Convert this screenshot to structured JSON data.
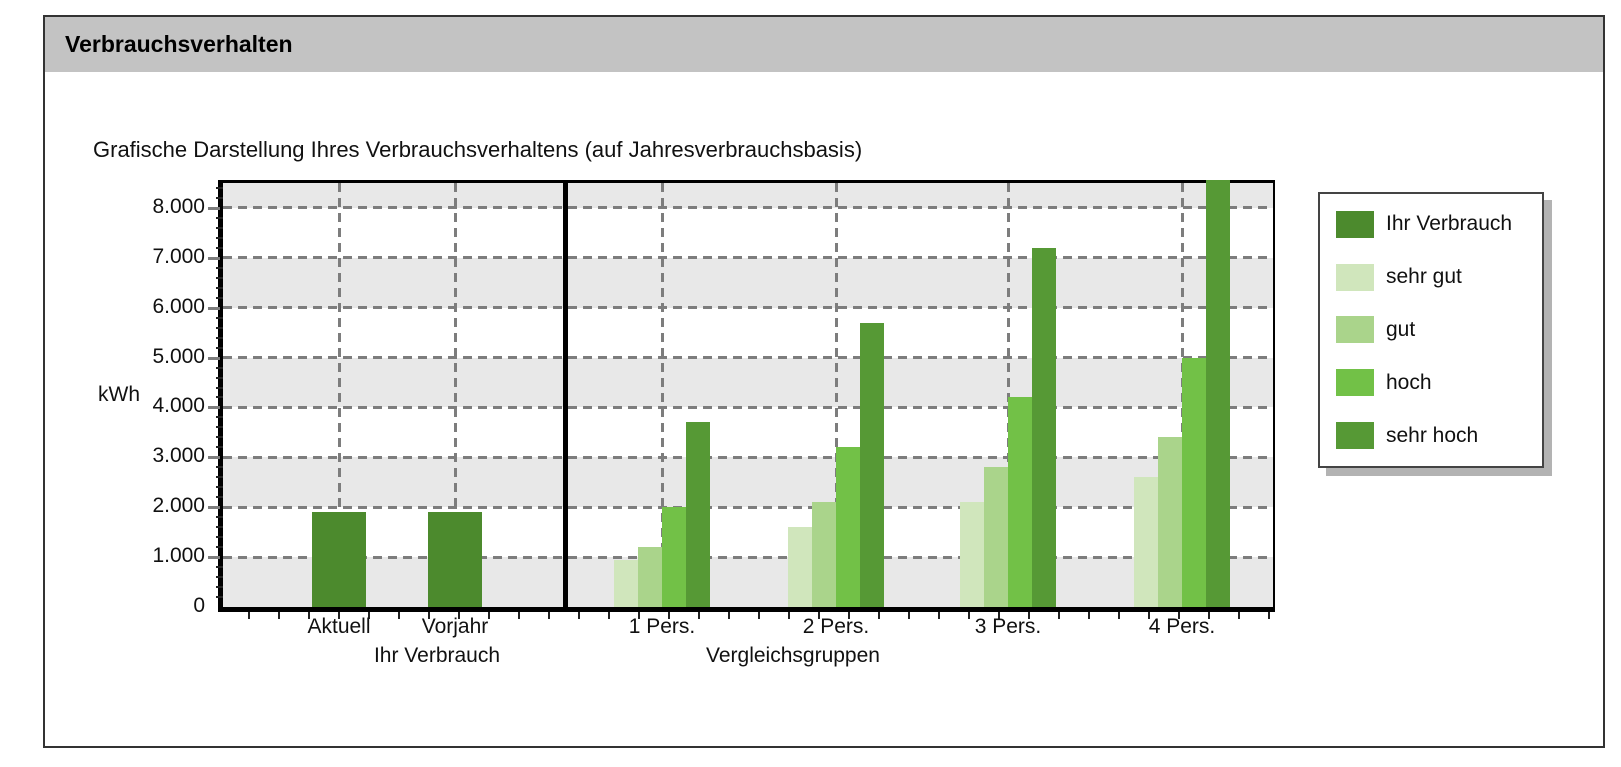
{
  "window": {
    "title": "Verbrauchsverhalten"
  },
  "chart_data": {
    "type": "bar",
    "title": "Grafische Darstellung Ihres Verbrauchsverhaltens (auf Jahresverbrauchsbasis)",
    "ylabel": "kWh",
    "ylim": [
      0,
      8500
    ],
    "ytick_interval": 1000,
    "ytick_labels": [
      "0",
      "1.000",
      "2.000",
      "3.000",
      "4.000",
      "5.000",
      "6.000",
      "7.000",
      "8.000"
    ],
    "grid": {
      "bands": true,
      "band_color": "#e8e8e8",
      "line_style": "dashed",
      "line_color": "#7d7d7d"
    },
    "panels": [
      {
        "axis_title": "Ihr Verbrauch",
        "categories": [
          "Aktuell",
          "Vorjahr"
        ],
        "series": [
          {
            "name": "Ihr Verbrauch",
            "color": "#4c8a2d",
            "values": [
              1900,
              1900
            ]
          }
        ]
      },
      {
        "axis_title": "Vergleichsgruppen",
        "categories": [
          "1 Pers.",
          "2 Pers.",
          "3 Pers.",
          "4 Pers."
        ],
        "series": [
          {
            "name": "sehr gut",
            "color": "#d0e6bc",
            "values": [
              950,
              1600,
              2100,
              2600
            ]
          },
          {
            "name": "gut",
            "color": "#aad48b",
            "values": [
              1200,
              2100,
              2800,
              3400
            ]
          },
          {
            "name": "hoch",
            "color": "#72c147",
            "values": [
              2000,
              3200,
              4200,
              5000
            ]
          },
          {
            "name": "sehr hoch",
            "color": "#569935",
            "values": [
              3700,
              5700,
              7200,
              8500
            ]
          }
        ]
      }
    ],
    "legend_position": "right"
  },
  "legend": {
    "items": [
      {
        "label": "Ihr Verbrauch",
        "color": "#4c8a2d"
      },
      {
        "label": "sehr gut",
        "color": "#d0e6bc"
      },
      {
        "label": "gut",
        "color": "#aad48b"
      },
      {
        "label": "hoch",
        "color": "#72c147"
      },
      {
        "label": "sehr hoch",
        "color": "#569935"
      }
    ]
  },
  "colors": {
    "titlebar_background": "#c3c3c3",
    "plot_band": "#e8e8e8",
    "grid_line": "#7d7d7d",
    "axis_line": "#000000"
  }
}
